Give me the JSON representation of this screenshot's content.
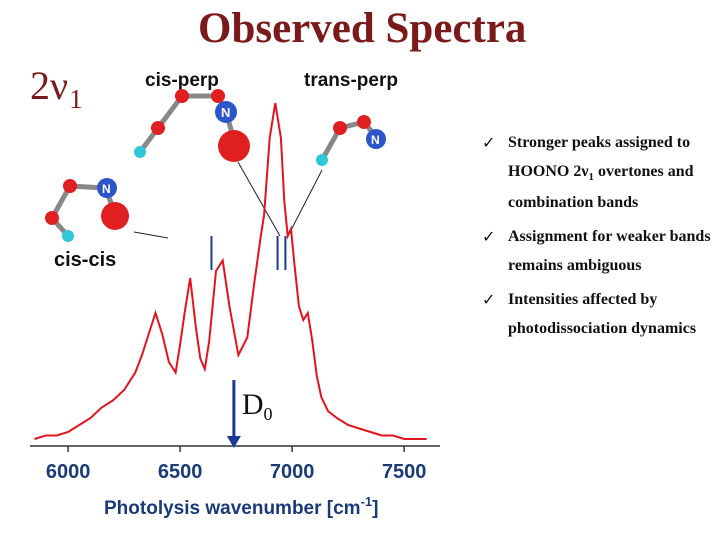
{
  "title": "Observed Spectra",
  "mode_label": {
    "main": "2ν",
    "sub": "1"
  },
  "chart_data": {
    "type": "line",
    "title": "Observed Spectra",
    "xlabel": "Photolysis wavenumber [cm",
    "xlabel_sup": "-1",
    "xlabel_end": "]",
    "ylabel": "",
    "xlim": [
      5830,
      7660
    ],
    "ylim": [
      0,
      1.0
    ],
    "xticks": [
      6000,
      6500,
      7000,
      7500
    ],
    "grid": false,
    "series": [
      {
        "color": "#e0141e",
        "x": [
          5850,
          5900,
          5950,
          6000,
          6050,
          6100,
          6150,
          6200,
          6250,
          6300,
          6330,
          6360,
          6390,
          6420,
          6450,
          6480,
          6500,
          6520,
          6545,
          6570,
          6590,
          6610,
          6630,
          6660,
          6690,
          6720,
          6760,
          6800,
          6830,
          6860,
          6875,
          6900,
          6925,
          6950,
          6965,
          6980,
          6995,
          7010,
          7030,
          7050,
          7070,
          7090,
          7110,
          7130,
          7160,
          7200,
          7250,
          7300,
          7350,
          7400,
          7450,
          7500,
          7550,
          7600
        ],
        "y": [
          0.02,
          0.03,
          0.03,
          0.04,
          0.06,
          0.08,
          0.11,
          0.13,
          0.16,
          0.21,
          0.26,
          0.32,
          0.38,
          0.32,
          0.24,
          0.21,
          0.29,
          0.38,
          0.48,
          0.34,
          0.25,
          0.22,
          0.3,
          0.5,
          0.53,
          0.4,
          0.26,
          0.31,
          0.46,
          0.6,
          0.66,
          0.88,
          0.98,
          0.88,
          0.7,
          0.6,
          0.62,
          0.52,
          0.4,
          0.36,
          0.38,
          0.3,
          0.2,
          0.14,
          0.1,
          0.08,
          0.06,
          0.05,
          0.04,
          0.03,
          0.03,
          0.02,
          0.02,
          0.02
        ]
      }
    ],
    "annotations": {
      "d0": {
        "main": "D",
        "sub": "0",
        "x": 6740
      },
      "cis_cis_marker_x": 6640,
      "trans_perp_marker_x": [
        6935,
        6970
      ]
    }
  },
  "molecules": {
    "cis_perp": "cis-perp",
    "trans_perp": "trans-perp",
    "cis_cis": "cis-cis",
    "atom_label": "N"
  },
  "bullets": [
    {
      "check": "ü",
      "parts": [
        "Stronger peaks assigned to HOONO 2ν",
        "1",
        " overtones and combination bands"
      ]
    },
    {
      "check": "ü",
      "parts": [
        "Assignment for weaker bands remains ambiguous"
      ]
    },
    {
      "check": "ü",
      "parts": [
        "Intensities affected by photodissociation dynamics"
      ]
    }
  ]
}
